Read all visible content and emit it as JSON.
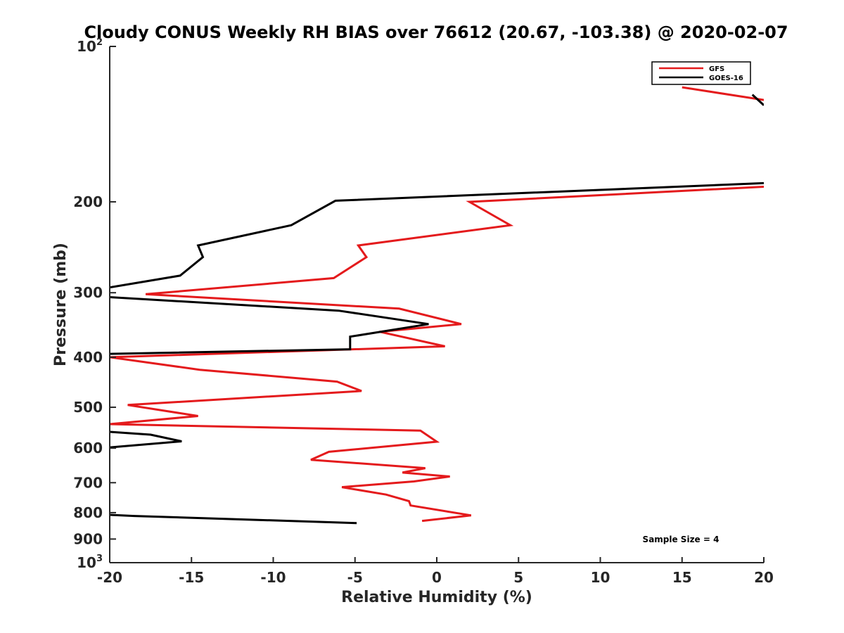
{
  "chart_data": {
    "type": "line",
    "title": "Cloudy CONUS Weekly RH BIAS over 76612 (20.67, -103.38) @ 2020-02-07",
    "xlabel": "Relative Humidity (%)",
    "ylabel": "Pressure (mb)",
    "xlim": [
      -20,
      20
    ],
    "ylim": [
      100,
      1000
    ],
    "yscale": "log",
    "y_reversed": true,
    "xticks": [
      -20,
      -15,
      -10,
      -5,
      0,
      5,
      10,
      15,
      20
    ],
    "xtick_labels": [
      "-20",
      "-15",
      "-10",
      "-5",
      "0",
      "5",
      "10",
      "15",
      "20"
    ],
    "yticks": [
      {
        "value": 100,
        "base": "10",
        "exp": "2"
      },
      {
        "value": 200,
        "label": "200"
      },
      {
        "value": 300,
        "label": "300"
      },
      {
        "value": 400,
        "label": "400"
      },
      {
        "value": 500,
        "label": "500"
      },
      {
        "value": 600,
        "label": "600"
      },
      {
        "value": 700,
        "label": "700"
      },
      {
        "value": 800,
        "label": "800"
      },
      {
        "value": 900,
        "label": "900"
      },
      {
        "value": 1000,
        "base": "10",
        "exp": "3"
      }
    ],
    "legend": {
      "placement": "top-right"
    },
    "annotation": "Sample Size = 4",
    "series": [
      {
        "name": "GFS",
        "color": "#e41a1c",
        "segments": [
          [
            [
              15,
              120
            ],
            [
              20,
              127
            ]
          ],
          [
            [
              20,
              187
            ],
            [
              2,
              200
            ],
            [
              4.5,
              222
            ],
            [
              -4.8,
              243
            ],
            [
              -4.3,
              256
            ],
            [
              -6.3,
              281
            ],
            [
              -17.8,
              302
            ],
            [
              -2.3,
              322
            ],
            [
              1.5,
              345
            ],
            [
              -3.5,
              357
            ],
            [
              0.5,
              381
            ],
            [
              -20,
              400
            ],
            [
              -14.5,
              423
            ],
            [
              -6.1,
              446
            ],
            [
              -4.6,
              465
            ],
            [
              -18.9,
              495
            ],
            [
              -14.6,
              520
            ],
            [
              -20,
              539
            ],
            [
              -1,
              555
            ],
            [
              0,
              583
            ],
            [
              -6.6,
              610
            ],
            [
              -7.7,
              632
            ],
            [
              -0.7,
              656
            ],
            [
              -2.1,
              669
            ],
            [
              0.8,
              681
            ],
            [
              -1.4,
              696
            ],
            [
              -5.8,
              714
            ],
            [
              -3.1,
              738
            ],
            [
              -1.7,
              760
            ],
            [
              -1.6,
              775
            ],
            [
              2.1,
              810
            ],
            [
              -0.9,
              830
            ]
          ]
        ]
      },
      {
        "name": "GOES-16",
        "color": "#000000",
        "segments": [
          [
            [
              19.3,
              124
            ],
            [
              20,
              130
            ]
          ],
          [
            [
              20,
              184
            ],
            [
              -6.2,
              199
            ],
            [
              -8.9,
              222
            ],
            [
              -14.6,
              243
            ],
            [
              -14.3,
              256
            ],
            [
              -15.7,
              278
            ],
            [
              -20,
              293
            ]
          ],
          [
            [
              -20,
              306
            ],
            [
              -6,
              325
            ],
            [
              -0.5,
              345
            ],
            [
              -5.3,
              365
            ],
            [
              -5.3,
              386
            ],
            [
              -20,
              394
            ]
          ],
          [
            [
              -20,
              558
            ],
            [
              -17.5,
              565
            ],
            [
              -15.6,
              582
            ],
            [
              -20,
              598
            ]
          ],
          [
            [
              -20,
              808
            ],
            [
              -18.5,
              812
            ],
            [
              -4.9,
              838
            ]
          ]
        ]
      }
    ]
  }
}
